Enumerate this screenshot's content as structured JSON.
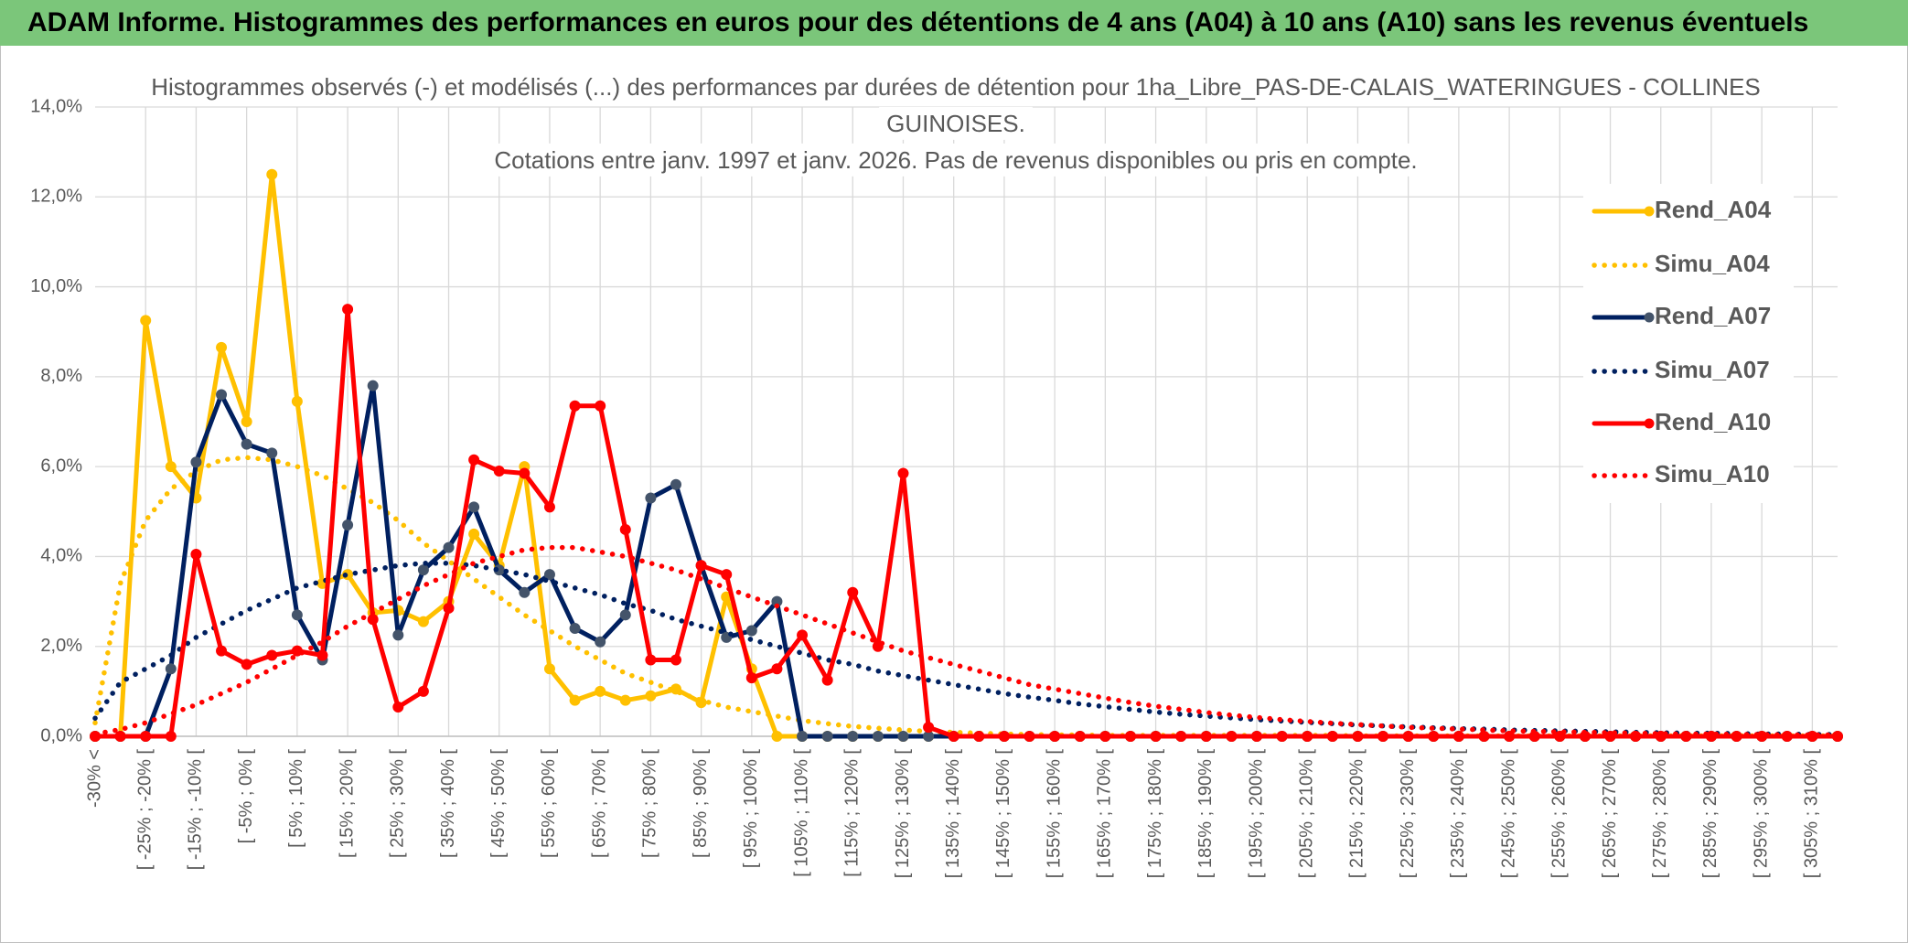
{
  "header": {
    "title": "ADAM Informe. Histogrammes des performances en euros pour des détentions de 4 ans (A04) à 10 ans (A10) sans les revenus éventuels"
  },
  "chart_data": {
    "type": "line",
    "title": [
      "Histogrammes observés (-) et modélisés (...) des performances par durées de détention pour 1ha_Libre_PAS-DE-CALAIS_WATERINGUES - COLLINES",
      "GUINOISES.",
      "Cotations entre janv. 1997 et janv. 2026. Pas de revenus disponibles ou pris en compte."
    ],
    "categories": [
      "-30% <",
      null,
      "[ -25% ; -20% [",
      null,
      "[ -15% ; -10% [",
      null,
      "[ -5% ; 0% [",
      null,
      "[ 5% ; 10% [",
      null,
      "[ 15% ; 20% [",
      null,
      "[ 25% ; 30% [",
      null,
      "[ 35% ; 40% [",
      null,
      "[ 45% ; 50% [",
      null,
      "[ 55% ; 60% [",
      null,
      "[ 65% ; 70% [",
      null,
      "[ 75% ; 80% [",
      null,
      "[ 85% ; 90% [",
      null,
      "[ 95% ; 100% [",
      null,
      "[ 105% ; 110% [",
      null,
      "[ 115% ; 120% [",
      null,
      "[ 125% ; 130% [",
      null,
      "[ 135% ; 140% [",
      null,
      "[ 145% ; 150% [",
      null,
      "[ 155% ; 160% [",
      null,
      "[ 165% ; 170% [",
      null,
      "[ 175% ; 180% [",
      null,
      "[ 185% ; 190% [",
      null,
      "[ 195% ; 200% [",
      null,
      "[ 205% ; 210% [",
      null,
      "[ 215% ; 220% [",
      null,
      "[ 225% ; 230% [",
      null,
      "[ 235% ; 240% [",
      null,
      "[ 245% ; 250% [",
      null,
      "[ 255% ; 260% [",
      null,
      "[ 265% ; 270% [",
      null,
      "[ 275% ; 280% [",
      null,
      "[ 285% ; 290% [",
      null,
      "[ 295% ; 300% [",
      null,
      "[ 305% ; 310% [",
      null
    ],
    "series": [
      {
        "name": "Rend_A04",
        "color": "#FFC000",
        "style": "solid",
        "values": [
          0,
          0,
          9.25,
          6.0,
          5.3,
          8.65,
          7.0,
          12.5,
          7.45,
          3.4,
          3.6,
          2.75,
          2.8,
          2.55,
          3.0,
          4.5,
          3.8,
          6.0,
          1.5,
          0.8,
          1.0,
          0.8,
          0.9,
          1.05,
          0.75,
          3.1,
          1.5,
          0,
          0,
          0,
          0,
          0,
          0,
          0,
          0,
          0,
          0,
          0,
          0,
          0,
          0,
          0,
          0,
          0,
          0,
          0,
          0,
          0,
          0,
          0,
          0,
          0,
          0,
          0,
          0,
          0,
          0,
          0,
          0,
          0,
          0,
          0,
          0,
          0,
          0,
          0,
          0,
          0,
          0,
          0
        ]
      },
      {
        "name": "Simu_A04",
        "color": "#FFC000",
        "style": "dotted",
        "values": [
          0.3,
          3.4,
          4.8,
          5.5,
          5.9,
          6.15,
          6.2,
          6.15,
          6.0,
          5.8,
          5.5,
          5.2,
          4.8,
          4.3,
          3.9,
          3.5,
          3.1,
          2.7,
          2.35,
          2.0,
          1.7,
          1.4,
          1.2,
          1.0,
          0.8,
          0.65,
          0.55,
          0.45,
          0.35,
          0.28,
          0.22,
          0.18,
          0.14,
          0.11,
          0.09,
          0.07,
          0.05,
          0.04,
          0.03,
          0.03,
          0.02,
          0.02,
          0.02,
          0.02,
          0.02,
          0.02,
          0.02,
          0.02,
          0.02,
          0.02,
          0.01,
          0.01,
          0.01,
          0.01,
          0.01,
          0.01,
          0.01,
          0.01,
          0.01,
          0.01,
          0.01,
          0.01,
          0.01,
          0.01,
          0.01,
          0.01,
          0.01,
          0.01,
          0.01,
          0.01
        ]
      },
      {
        "name": "Rend_A07",
        "color": "#002060",
        "marker": "#44546A",
        "style": "solid",
        "values": [
          0,
          0,
          0,
          1.5,
          6.1,
          7.6,
          6.5,
          6.3,
          2.7,
          1.7,
          4.7,
          7.8,
          2.25,
          3.7,
          4.2,
          5.1,
          3.7,
          3.2,
          3.6,
          2.4,
          2.1,
          2.7,
          5.3,
          5.6,
          3.8,
          2.2,
          2.35,
          3.0,
          0,
          0,
          0,
          0,
          0,
          0,
          0,
          0,
          0,
          0,
          0,
          0,
          0,
          0,
          0,
          0,
          0,
          0,
          0,
          0,
          0,
          0,
          0,
          0,
          0,
          0,
          0,
          0,
          0,
          0,
          0,
          0,
          0,
          0,
          0,
          0,
          0,
          0,
          0,
          0,
          0,
          0
        ]
      },
      {
        "name": "Simu_A07",
        "color": "#002060",
        "style": "dotted",
        "values": [
          0.4,
          1.2,
          1.5,
          1.8,
          2.2,
          2.5,
          2.8,
          3.05,
          3.3,
          3.45,
          3.6,
          3.7,
          3.8,
          3.85,
          3.85,
          3.8,
          3.7,
          3.6,
          3.45,
          3.3,
          3.15,
          2.95,
          2.8,
          2.6,
          2.45,
          2.3,
          2.15,
          2.0,
          1.85,
          1.7,
          1.6,
          1.45,
          1.35,
          1.25,
          1.15,
          1.05,
          0.95,
          0.87,
          0.8,
          0.72,
          0.66,
          0.6,
          0.54,
          0.49,
          0.45,
          0.41,
          0.37,
          0.34,
          0.31,
          0.28,
          0.25,
          0.23,
          0.21,
          0.19,
          0.17,
          0.16,
          0.14,
          0.13,
          0.12,
          0.11,
          0.1,
          0.09,
          0.08,
          0.07,
          0.07,
          0.06,
          0.05,
          0.05,
          0.04,
          0.04
        ]
      },
      {
        "name": "Rend_A10",
        "color": "#FF0000",
        "style": "solid",
        "values": [
          0,
          0,
          0,
          0,
          4.05,
          1.9,
          1.6,
          1.8,
          1.9,
          1.8,
          9.5,
          2.6,
          0.65,
          1.0,
          2.85,
          6.15,
          5.9,
          5.85,
          5.1,
          7.35,
          7.35,
          4.6,
          1.7,
          1.7,
          3.8,
          3.6,
          1.3,
          1.5,
          2.25,
          1.25,
          3.2,
          2.0,
          5.85,
          0.2,
          0,
          0,
          0,
          0,
          0,
          0,
          0,
          0,
          0,
          0,
          0,
          0,
          0,
          0,
          0,
          0,
          0,
          0,
          0,
          0,
          0,
          0,
          0,
          0,
          0,
          0,
          0,
          0,
          0,
          0,
          0,
          0,
          0,
          0,
          0,
          0
        ]
      },
      {
        "name": "Simu_A10",
        "color": "#FF0000",
        "style": "dotted",
        "values": [
          0.05,
          0.15,
          0.3,
          0.5,
          0.7,
          0.95,
          1.2,
          1.5,
          1.8,
          2.1,
          2.45,
          2.75,
          3.05,
          3.35,
          3.6,
          3.85,
          4.0,
          4.15,
          4.2,
          4.2,
          4.1,
          4.0,
          3.85,
          3.7,
          3.5,
          3.3,
          3.1,
          2.9,
          2.7,
          2.5,
          2.3,
          2.1,
          1.9,
          1.75,
          1.6,
          1.45,
          1.3,
          1.15,
          1.05,
          0.95,
          0.85,
          0.75,
          0.67,
          0.6,
          0.53,
          0.47,
          0.42,
          0.37,
          0.33,
          0.29,
          0.26,
          0.23,
          0.2,
          0.18,
          0.16,
          0.14,
          0.12,
          0.11,
          0.1,
          0.09,
          0.08,
          0.07,
          0.06,
          0.05,
          0.05,
          0.04,
          0.04,
          0.03,
          0.03,
          0.03
        ]
      }
    ],
    "ylim": [
      0,
      14
    ],
    "yticks": [
      {
        "value": 0,
        "label": "0,0%"
      },
      {
        "value": 2,
        "label": "2,0%"
      },
      {
        "value": 4,
        "label": "4,0%"
      },
      {
        "value": 6,
        "label": "6,0%"
      },
      {
        "value": 8,
        "label": "8,0%"
      },
      {
        "value": 10,
        "label": "10,0%"
      },
      {
        "value": 12,
        "label": "12,0%"
      },
      {
        "value": 14,
        "label": "14,0%"
      }
    ],
    "grid": true,
    "legend": "right"
  }
}
